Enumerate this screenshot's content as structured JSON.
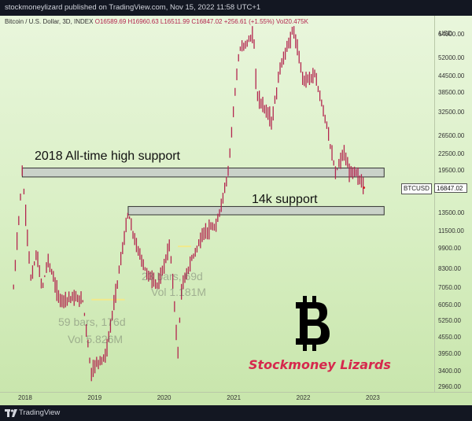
{
  "header": {
    "publisher": "stockmoneylizard published on TradingView.com, Nov 15, 2022 11:58 UTC+1"
  },
  "symbol": {
    "name": "Bitcoin / U.S. Dollar, 3D, INDEX",
    "ohlc": "O16589.69 H16960.63 L16511.99 C16847.02 +256.61 (+1.55%) Vol20.475K"
  },
  "price_axis": {
    "currency": "USD",
    "ticks": [
      "64000.00",
      "52000.00",
      "44500.00",
      "38500.00",
      "32500.00",
      "26500.00",
      "22500.00",
      "19500.00",
      "13500.00",
      "11500.00",
      "9900.00",
      "8300.00",
      "7050.00",
      "6050.00",
      "5250.00",
      "4550.00",
      "3950.00",
      "3400.00",
      "2960.00"
    ],
    "last_price": "16847.02",
    "ticker": "BTCUSD"
  },
  "time_axis": {
    "ticks": [
      "2018",
      "2019",
      "2020",
      "2021",
      "2022",
      "2023"
    ]
  },
  "annotations": {
    "support_2018": "2018 All-time high support",
    "support_14k": "14k support",
    "range1_bars": "59 bars, 176d",
    "range1_vol": "Vol 5.826M",
    "range2_bars": "23 bars, 69d",
    "range2_vol": "Vol 1.181M",
    "brand": "Stockmoney Lizards"
  },
  "footer": {
    "brand": "TradingView"
  },
  "colors": {
    "candle": "#b3264f",
    "support_box": "#c7ccc9",
    "accent": "#d6284d",
    "highlight": "#f2ea8a"
  },
  "chart_data": {
    "type": "line",
    "title": "Bitcoin / U.S. Dollar, 3D, INDEX",
    "y_scale": "log",
    "ylim": [
      2800,
      72000
    ],
    "x": [
      "2017-11",
      "2017-12-17",
      "2018-01",
      "2018-02",
      "2018-03",
      "2018-04",
      "2018-05",
      "2018-07",
      "2018-09",
      "2018-11-01",
      "2018-12-15",
      "2019-01",
      "2019-03",
      "2019-05",
      "2019-06-26",
      "2019-08",
      "2019-10",
      "2019-12",
      "2020-02",
      "2020-03-13",
      "2020-04",
      "2020-06",
      "2020-08",
      "2020-10",
      "2020-12",
      "2021-01-08",
      "2021-02",
      "2021-04-14",
      "2021-05",
      "2021-07-20",
      "2021-09",
      "2021-11-10",
      "2022-01",
      "2022-03",
      "2022-05",
      "2022-06-18",
      "2022-08",
      "2022-09",
      "2022-10",
      "2022-11-15"
    ],
    "values": [
      7000,
      19500,
      14000,
      7500,
      9500,
      7000,
      9000,
      6300,
      6500,
      6300,
      3300,
      3600,
      3900,
      7500,
      13500,
      10500,
      8000,
      7200,
      10300,
      3950,
      7000,
      9300,
      11500,
      12000,
      19000,
      40000,
      56000,
      64000,
      38000,
      30000,
      48000,
      67000,
      43000,
      45000,
      30000,
      19000,
      23000,
      19200,
      19500,
      16847
    ],
    "supports": [
      {
        "label": "2018 All-time high support",
        "low": 18500,
        "high": 20000,
        "from": "2017-12-17",
        "to": "2023-03"
      },
      {
        "label": "14k support",
        "low": 13300,
        "high": 14300,
        "from": "2019-06-26",
        "to": "2023-03"
      }
    ],
    "measurements": [
      {
        "label": "59 bars, 176d",
        "volume": "Vol 5.826M",
        "from": "2018-12-15",
        "to": "2019-06-08"
      },
      {
        "label": "23 bars, 69d",
        "volume": "Vol 1.181M",
        "from": "2020-03-13",
        "to": "2020-05-21"
      }
    ],
    "x_ticks": [
      "2018",
      "2019",
      "2020",
      "2021",
      "2022",
      "2023"
    ],
    "y_ticks": [
      64000,
      52000,
      44500,
      38500,
      32500,
      26500,
      22500,
      19500,
      13500,
      11500,
      9900,
      8300,
      7050,
      6050,
      5250,
      4550,
      3950,
      3400,
      2960
    ],
    "last_price": 16847.02,
    "grid": false
  }
}
